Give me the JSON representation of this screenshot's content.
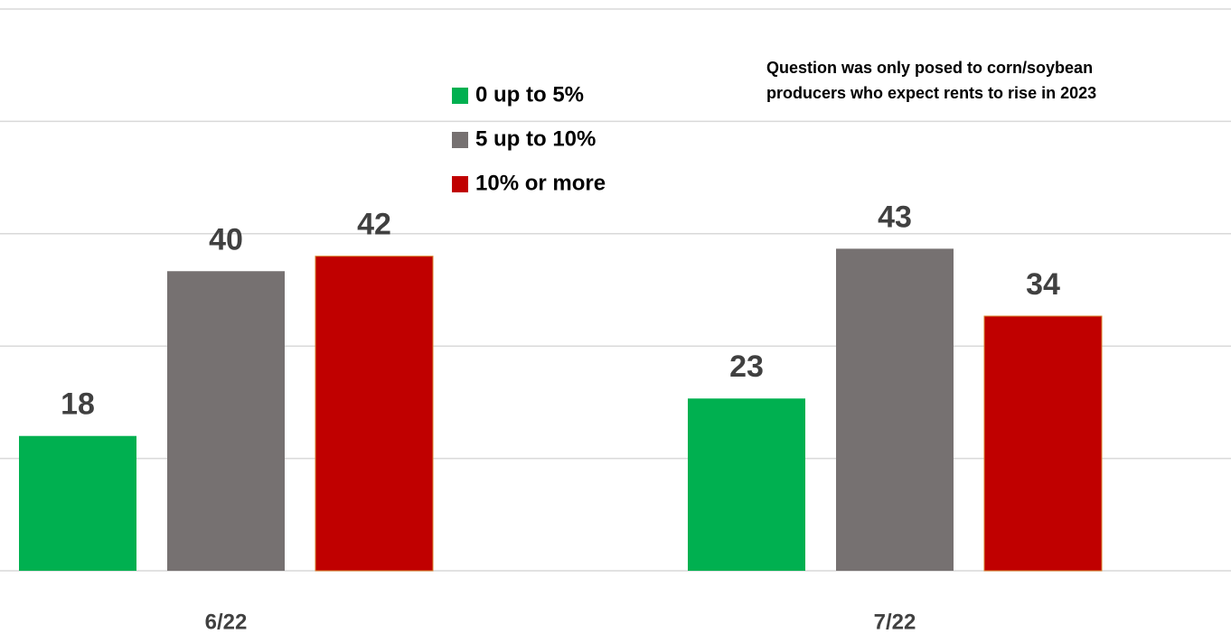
{
  "chart_data": {
    "type": "bar",
    "categories": [
      "6/22",
      "7/22"
    ],
    "series": [
      {
        "name": "0 up to 5%",
        "color": "#00b050",
        "values": [
          18,
          23
        ]
      },
      {
        "name": "5 up to 10%",
        "color": "#767171",
        "values": [
          40,
          43
        ]
      },
      {
        "name": "10% or more",
        "color": "#c00000",
        "values": [
          42,
          34
        ]
      }
    ],
    "annotation": [
      "Question was only posed to corn/soybean",
      "producers who expect rents to rise in 2023"
    ],
    "ylim": [
      0,
      75
    ],
    "yticks": [
      0,
      15,
      30,
      45,
      60,
      75
    ],
    "grid": true
  }
}
